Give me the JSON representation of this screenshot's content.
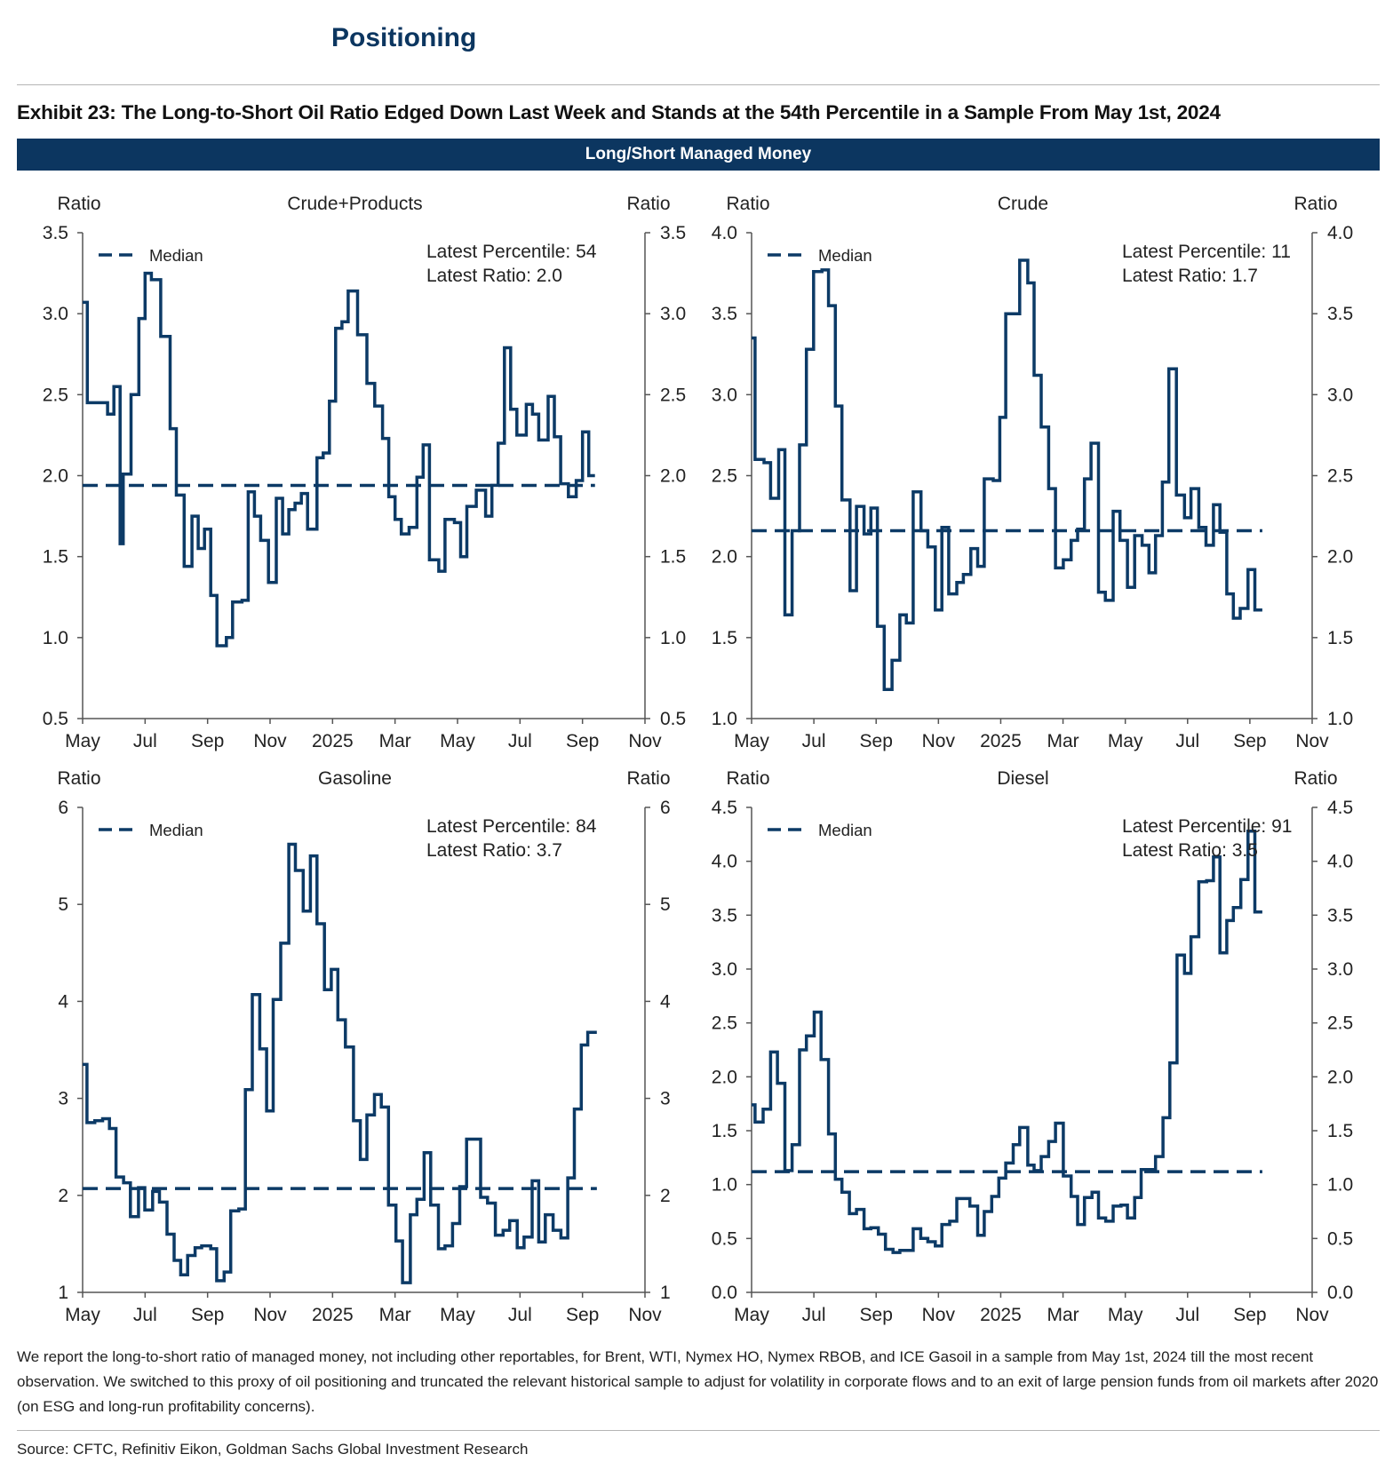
{
  "header": {
    "section_title": "Positioning",
    "exhibit_title": "Exhibit 23: The Long-to-Short Oil Ratio Edged Down Last Week and Stands at the 54th Percentile in a Sample From May 1st, 2024",
    "band_label": "Long/Short Managed Money"
  },
  "footer": {
    "footnote": "We report the long-to-short ratio of managed money, not including other reportables, for Brent, WTI, Nymex HO, Nymex RBOB, and ICE Gasoil in a sample from May 1st, 2024 till the most recent observation. We switched to this proxy of oil positioning and truncated the relevant historical sample to adjust for volatility in corporate flows and to an exit of large pension funds from oil markets after 2020 (on ESG and long-run profitability concerns).",
    "source": "Source: CFTC, Refinitiv Eikon, Goldman Sachs Global Investment Research"
  },
  "colors": {
    "line": "#0c3a66",
    "band": "#0c3660",
    "axis": "#555555"
  },
  "chart_data": [
    {
      "type": "line",
      "title": "Crude+Products",
      "ylabel_left": "Ratio",
      "ylabel_right": "Ratio",
      "x_unit": "months since May 1, 2024",
      "xlim": [
        0,
        18
      ],
      "x_ticks": [
        0,
        2,
        4,
        6,
        8,
        10,
        12,
        14,
        16,
        18
      ],
      "x_tick_labels": [
        "May",
        "Jul",
        "Sep",
        "Nov",
        "2025",
        "Mar",
        "May",
        "Jul",
        "Sep",
        "Nov"
      ],
      "ylim": [
        0.5,
        3.5
      ],
      "y_ticks": [
        0.5,
        1.0,
        1.5,
        2.0,
        2.5,
        3.0,
        3.5
      ],
      "y_tick_labels": [
        "0.5",
        "1.0",
        "1.5",
        "2.0",
        "2.5",
        "3.0",
        "3.5"
      ],
      "legend": {
        "label": "Median",
        "placement": "top-left"
      },
      "annotation": [
        "Latest Percentile: 54",
        "Latest Ratio: 2.0"
      ],
      "median": 1.94,
      "x_end": 16.4,
      "x": [
        0,
        0.15,
        0.8,
        1.0,
        1.2,
        1.3,
        1.55,
        1.8,
        2.0,
        2.2,
        2.5,
        2.8,
        3.0,
        3.25,
        3.5,
        3.7,
        3.9,
        4.1,
        4.3,
        4.6,
        4.8,
        5.1,
        5.3,
        5.5,
        5.7,
        5.95,
        6.2,
        6.4,
        6.6,
        6.8,
        7.0,
        7.2,
        7.5,
        7.7,
        7.9,
        8.1,
        8.3,
        8.5,
        8.8,
        9.1,
        9.35,
        9.6,
        9.8,
        10.0,
        10.2,
        10.45,
        10.7,
        10.9,
        11.1,
        11.4,
        11.6,
        11.9,
        12.1,
        12.3,
        12.6,
        12.9,
        13.1,
        13.3,
        13.5,
        13.7,
        13.9,
        14.2,
        14.4,
        14.6,
        14.9,
        15.1,
        15.3,
        15.55,
        15.8,
        16.0,
        16.2
      ],
      "y": [
        3.07,
        2.45,
        2.38,
        2.55,
        1.58,
        2.01,
        2.5,
        2.97,
        3.25,
        3.21,
        2.86,
        2.29,
        1.88,
        1.44,
        1.75,
        1.55,
        1.67,
        1.26,
        0.95,
        1.0,
        1.22,
        1.23,
        1.9,
        1.75,
        1.6,
        1.34,
        1.86,
        1.64,
        1.79,
        1.83,
        1.89,
        1.67,
        2.11,
        2.14,
        2.46,
        2.91,
        2.95,
        3.14,
        2.87,
        2.57,
        2.43,
        2.23,
        1.87,
        1.73,
        1.64,
        1.68,
        1.99,
        2.19,
        1.48,
        1.41,
        1.73,
        1.71,
        1.5,
        1.81,
        1.91,
        1.75,
        1.94,
        2.2,
        2.79,
        2.41,
        2.25,
        2.44,
        2.38,
        2.22,
        2.49,
        2.24,
        1.95,
        1.87,
        1.97,
        2.27,
        2.0
      ]
    },
    {
      "type": "line",
      "title": "Crude",
      "ylabel_left": "Ratio",
      "ylabel_right": "Ratio",
      "x_unit": "months since May 1, 2024",
      "xlim": [
        0,
        18
      ],
      "x_ticks": [
        0,
        2,
        4,
        6,
        8,
        10,
        12,
        14,
        16,
        18
      ],
      "x_tick_labels": [
        "May",
        "Jul",
        "Sep",
        "Nov",
        "2025",
        "Mar",
        "May",
        "Jul",
        "Sep",
        "Nov"
      ],
      "ylim": [
        1.0,
        4.0
      ],
      "y_ticks": [
        1.0,
        1.5,
        2.0,
        2.5,
        3.0,
        3.5,
        4.0
      ],
      "y_tick_labels": [
        "1.0",
        "1.5",
        "2.0",
        "2.5",
        "3.0",
        "3.5",
        "4.0"
      ],
      "legend": {
        "label": "Median",
        "placement": "top-left"
      },
      "annotation": [
        "Latest Percentile: 11",
        "Latest Ratio: 1.7"
      ],
      "median": 2.16,
      "x_end": 16.4,
      "x": [
        0,
        0.11,
        0.4,
        0.61,
        0.87,
        1.07,
        1.3,
        1.54,
        1.76,
        1.99,
        2.26,
        2.47,
        2.69,
        2.9,
        3.16,
        3.37,
        3.61,
        3.83,
        4.04,
        4.26,
        4.51,
        4.76,
        4.97,
        5.19,
        5.44,
        5.66,
        5.9,
        6.11,
        6.33,
        6.59,
        6.8,
        7.04,
        7.26,
        7.47,
        7.76,
        7.97,
        8.16,
        8.61,
        8.87,
        9.07,
        9.3,
        9.54,
        9.76,
        10.01,
        10.26,
        10.47,
        10.69,
        10.9,
        11.14,
        11.36,
        11.61,
        11.83,
        12.07,
        12.3,
        12.54,
        12.76,
        12.97,
        13.19,
        13.4,
        13.64,
        13.9,
        14.11,
        14.36,
        14.59,
        14.83,
        15.04,
        15.26,
        15.47,
        15.69,
        15.94,
        16.16
      ],
      "y": [
        3.35,
        2.6,
        2.58,
        2.36,
        2.66,
        1.64,
        2.16,
        2.69,
        3.28,
        3.76,
        3.77,
        3.55,
        2.93,
        2.35,
        1.79,
        2.31,
        2.14,
        2.3,
        1.57,
        1.18,
        1.36,
        1.64,
        1.59,
        2.4,
        2.16,
        2.06,
        1.67,
        2.18,
        1.77,
        1.84,
        1.89,
        2.05,
        1.94,
        2.48,
        2.47,
        2.86,
        3.5,
        3.83,
        3.69,
        3.12,
        2.8,
        2.42,
        1.93,
        1.98,
        2.1,
        2.17,
        2.48,
        2.7,
        1.78,
        1.73,
        2.28,
        2.1,
        1.81,
        2.13,
        2.07,
        1.9,
        2.13,
        2.46,
        3.16,
        2.38,
        2.24,
        2.42,
        2.18,
        2.07,
        2.32,
        2.15,
        1.77,
        1.62,
        1.68,
        1.92,
        1.67
      ]
    },
    {
      "type": "line",
      "title": "Gasoline",
      "ylabel_left": "Ratio",
      "ylabel_right": "Ratio",
      "x_unit": "months since May 1, 2024",
      "xlim": [
        0,
        18
      ],
      "x_ticks": [
        0,
        2,
        4,
        6,
        8,
        10,
        12,
        14,
        16,
        18
      ],
      "x_tick_labels": [
        "May",
        "Jul",
        "Sep",
        "Nov",
        "2025",
        "Mar",
        "May",
        "Jul",
        "Sep",
        "Nov"
      ],
      "ylim": [
        1,
        6
      ],
      "y_ticks": [
        1,
        2,
        3,
        4,
        5,
        6
      ],
      "y_tick_labels": [
        "1",
        "2",
        "3",
        "4",
        "5",
        "6"
      ],
      "legend": {
        "label": "Median",
        "placement": "top-left"
      },
      "annotation": [
        "Latest Percentile: 84",
        "Latest Ratio: 3.7"
      ],
      "median": 2.07,
      "x_end": 16.46,
      "x": [
        0,
        0.14,
        0.39,
        0.64,
        0.86,
        1.07,
        1.31,
        1.53,
        1.79,
        1.99,
        2.24,
        2.46,
        2.7,
        2.93,
        3.14,
        3.36,
        3.6,
        3.81,
        4.1,
        4.29,
        4.53,
        4.74,
        5.0,
        5.21,
        5.43,
        5.67,
        5.89,
        6.1,
        6.34,
        6.6,
        6.81,
        7.06,
        7.29,
        7.5,
        7.74,
        7.96,
        8.17,
        8.41,
        8.67,
        8.89,
        9.1,
        9.34,
        9.56,
        9.79,
        10.03,
        10.24,
        10.49,
        10.7,
        10.93,
        11.14,
        11.39,
        11.6,
        11.84,
        12.07,
        12.29,
        12.74,
        12.96,
        13.21,
        13.46,
        13.67,
        13.91,
        14.13,
        14.39,
        14.6,
        14.81,
        15.06,
        15.31,
        15.53,
        15.74,
        15.96,
        16.17
      ],
      "y": [
        3.35,
        2.75,
        2.77,
        2.79,
        2.69,
        2.19,
        2.13,
        1.78,
        2.08,
        1.85,
        2.04,
        1.93,
        1.6,
        1.33,
        1.18,
        1.38,
        1.46,
        1.48,
        1.45,
        1.12,
        1.21,
        1.84,
        1.86,
        3.09,
        4.07,
        3.51,
        2.87,
        4.02,
        4.6,
        5.62,
        5.35,
        4.93,
        5.5,
        4.8,
        4.12,
        4.33,
        3.81,
        3.53,
        2.77,
        2.37,
        2.83,
        3.04,
        2.91,
        1.9,
        1.53,
        1.1,
        1.8,
        1.96,
        2.44,
        1.9,
        1.45,
        1.48,
        1.71,
        2.09,
        2.58,
        1.98,
        1.92,
        1.59,
        1.64,
        1.74,
        1.46,
        1.57,
        2.15,
        1.52,
        1.8,
        1.64,
        1.56,
        2.18,
        2.89,
        3.55,
        3.68
      ]
    },
    {
      "type": "line",
      "title": "Diesel",
      "ylabel_left": "Ratio",
      "ylabel_right": "Ratio",
      "x_unit": "months since May 1, 2024",
      "xlim": [
        0,
        18
      ],
      "x_ticks": [
        0,
        2,
        4,
        6,
        8,
        10,
        12,
        14,
        16,
        18
      ],
      "x_tick_labels": [
        "May",
        "Jul",
        "Sep",
        "Nov",
        "2025",
        "Mar",
        "May",
        "Jul",
        "Sep",
        "Nov"
      ],
      "ylim": [
        0.0,
        4.5
      ],
      "y_ticks": [
        0.0,
        0.5,
        1.0,
        1.5,
        2.0,
        2.5,
        3.0,
        3.5,
        4.0,
        4.5
      ],
      "y_tick_labels": [
        "0.0",
        "0.5",
        "1.0",
        "1.5",
        "2.0",
        "2.5",
        "3.0",
        "3.5",
        "4.0",
        "4.5"
      ],
      "legend": {
        "label": "Median",
        "placement": "top-left"
      },
      "annotation": [
        "Latest Percentile: 91",
        "Latest Ratio: 3.5"
      ],
      "median": 1.12,
      "x_end": 16.4,
      "x": [
        0,
        0.11,
        0.37,
        0.61,
        0.83,
        1.07,
        1.3,
        1.54,
        1.76,
        2.01,
        2.23,
        2.47,
        2.69,
        2.9,
        3.14,
        3.37,
        3.61,
        3.83,
        4.07,
        4.3,
        4.54,
        4.76,
        5.19,
        5.43,
        5.66,
        5.9,
        6.11,
        6.36,
        6.59,
        7.01,
        7.26,
        7.47,
        7.71,
        7.94,
        8.16,
        8.4,
        8.61,
        8.87,
        9.07,
        9.3,
        9.54,
        9.76,
        10.01,
        10.26,
        10.47,
        10.69,
        10.93,
        11.14,
        11.37,
        11.61,
        11.86,
        12.07,
        12.3,
        12.51,
        12.76,
        12.97,
        13.21,
        13.43,
        13.66,
        13.9,
        14.11,
        14.36,
        14.61,
        14.83,
        15.04,
        15.26,
        15.47,
        15.71,
        15.94,
        16.16
      ],
      "y": [
        1.74,
        1.58,
        1.7,
        2.23,
        1.94,
        1.13,
        1.37,
        2.25,
        2.38,
        2.6,
        2.16,
        1.47,
        1.05,
        0.93,
        0.73,
        0.77,
        0.59,
        0.6,
        0.54,
        0.4,
        0.37,
        0.39,
        0.59,
        0.5,
        0.47,
        0.43,
        0.63,
        0.66,
        0.87,
        0.8,
        0.53,
        0.75,
        0.89,
        1.06,
        1.2,
        1.37,
        1.53,
        1.18,
        1.13,
        1.26,
        1.4,
        1.57,
        1.08,
        0.89,
        0.63,
        0.88,
        0.93,
        0.69,
        0.66,
        0.8,
        0.81,
        0.69,
        0.88,
        1.14,
        1.14,
        1.26,
        1.62,
        2.13,
        3.13,
        2.96,
        3.3,
        3.81,
        3.82,
        4.04,
        3.15,
        3.45,
        3.57,
        3.83,
        4.28,
        3.53
      ]
    }
  ]
}
